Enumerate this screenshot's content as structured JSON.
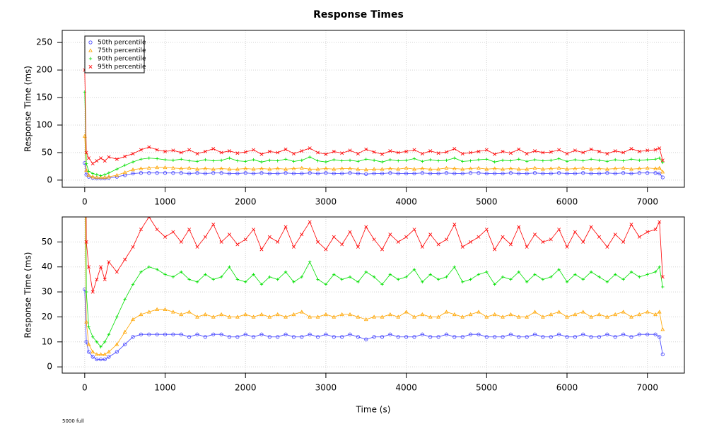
{
  "chart_data": {
    "type": "line",
    "title": "Response Times",
    "x_label": "Time (s)",
    "y_label": "Response Time (ms)",
    "footnote": "5000 full",
    "legend": "topleft",
    "grid": true,
    "xlim": [
      -280,
      7460
    ],
    "xticks": [
      0,
      1000,
      2000,
      3000,
      4000,
      5000,
      6000,
      7000
    ],
    "panels": [
      {
        "ylim": [
          -13,
          272
        ],
        "yticks": [
          0,
          50,
          100,
          150,
          200,
          250
        ]
      },
      {
        "ylim": [
          -2.5,
          60
        ],
        "yticks": [
          0,
          10,
          20,
          30,
          40,
          50
        ]
      }
    ],
    "x": [
      0,
      20,
      50,
      100,
      150,
      200,
      250,
      300,
      400,
      500,
      600,
      700,
      800,
      900,
      1000,
      1100,
      1200,
      1300,
      1400,
      1500,
      1600,
      1700,
      1800,
      1900,
      2000,
      2100,
      2200,
      2300,
      2400,
      2500,
      2600,
      2700,
      2800,
      2900,
      3000,
      3100,
      3200,
      3300,
      3400,
      3500,
      3600,
      3700,
      3800,
      3900,
      4000,
      4100,
      4200,
      4300,
      4400,
      4500,
      4600,
      4700,
      4800,
      4900,
      5000,
      5100,
      5200,
      5300,
      5400,
      5500,
      5600,
      5700,
      5800,
      5900,
      6000,
      6100,
      6200,
      6300,
      6400,
      6500,
      6600,
      6700,
      6800,
      6900,
      7000,
      7100,
      7150,
      7190
    ],
    "series": [
      {
        "name": "50th percentile",
        "color": "#3f3fff",
        "marker": "circle",
        "values": [
          31,
          10,
          6,
          4,
          3,
          3,
          3,
          4,
          6,
          9,
          12,
          13,
          13,
          13,
          13,
          13,
          13,
          12,
          13,
          12,
          13,
          13,
          12,
          12,
          13,
          12,
          13,
          12,
          12,
          13,
          12,
          12,
          13,
          12,
          13,
          12,
          12,
          13,
          12,
          11,
          12,
          12,
          13,
          12,
          12,
          12,
          13,
          12,
          12,
          13,
          12,
          12,
          13,
          13,
          12,
          12,
          12,
          13,
          12,
          12,
          13,
          12,
          12,
          13,
          12,
          12,
          13,
          12,
          12,
          13,
          12,
          13,
          12,
          13,
          13,
          13,
          12,
          5
        ]
      },
      {
        "name": "75th percentile",
        "color": "#ffa500",
        "marker": "triangle",
        "values": [
          80,
          18,
          9,
          6,
          5,
          5,
          5,
          6,
          9,
          14,
          19,
          21,
          22,
          23,
          23,
          22,
          21,
          22,
          20,
          21,
          20,
          21,
          20,
          20,
          21,
          20,
          21,
          20,
          21,
          20,
          21,
          22,
          20,
          20,
          21,
          20,
          21,
          21,
          20,
          19,
          20,
          20,
          21,
          20,
          22,
          20,
          21,
          20,
          20,
          22,
          21,
          20,
          21,
          22,
          20,
          21,
          20,
          21,
          20,
          20,
          22,
          20,
          21,
          22,
          20,
          21,
          22,
          20,
          21,
          20,
          21,
          22,
          20,
          21,
          22,
          21,
          22,
          15
        ]
      },
      {
        "name": "90th percentile",
        "color": "#00e000",
        "marker": "plus",
        "values": [
          160,
          30,
          16,
          12,
          10,
          8,
          10,
          13,
          20,
          27,
          33,
          38,
          40,
          39,
          37,
          36,
          38,
          35,
          34,
          37,
          35,
          36,
          40,
          35,
          34,
          37,
          33,
          36,
          35,
          38,
          34,
          36,
          42,
          35,
          33,
          37,
          35,
          36,
          34,
          38,
          36,
          33,
          37,
          35,
          36,
          39,
          34,
          37,
          35,
          36,
          40,
          34,
          35,
          37,
          38,
          33,
          36,
          35,
          38,
          34,
          37,
          35,
          36,
          39,
          34,
          37,
          35,
          38,
          36,
          34,
          37,
          35,
          38,
          36,
          37,
          38,
          40,
          32
        ]
      },
      {
        "name": "95th percentile",
        "color": "#ff0000",
        "marker": "cross",
        "values": [
          200,
          50,
          40,
          30,
          35,
          40,
          35,
          42,
          38,
          43,
          48,
          55,
          60,
          55,
          52,
          54,
          50,
          55,
          48,
          52,
          57,
          50,
          53,
          49,
          51,
          55,
          47,
          52,
          50,
          56,
          48,
          53,
          58,
          50,
          47,
          52,
          49,
          54,
          48,
          56,
          51,
          47,
          53,
          50,
          52,
          55,
          48,
          53,
          49,
          51,
          57,
          48,
          50,
          52,
          55,
          47,
          52,
          49,
          56,
          48,
          53,
          50,
          51,
          55,
          48,
          54,
          50,
          56,
          52,
          48,
          53,
          50,
          57,
          52,
          54,
          55,
          58,
          36
        ]
      }
    ]
  }
}
